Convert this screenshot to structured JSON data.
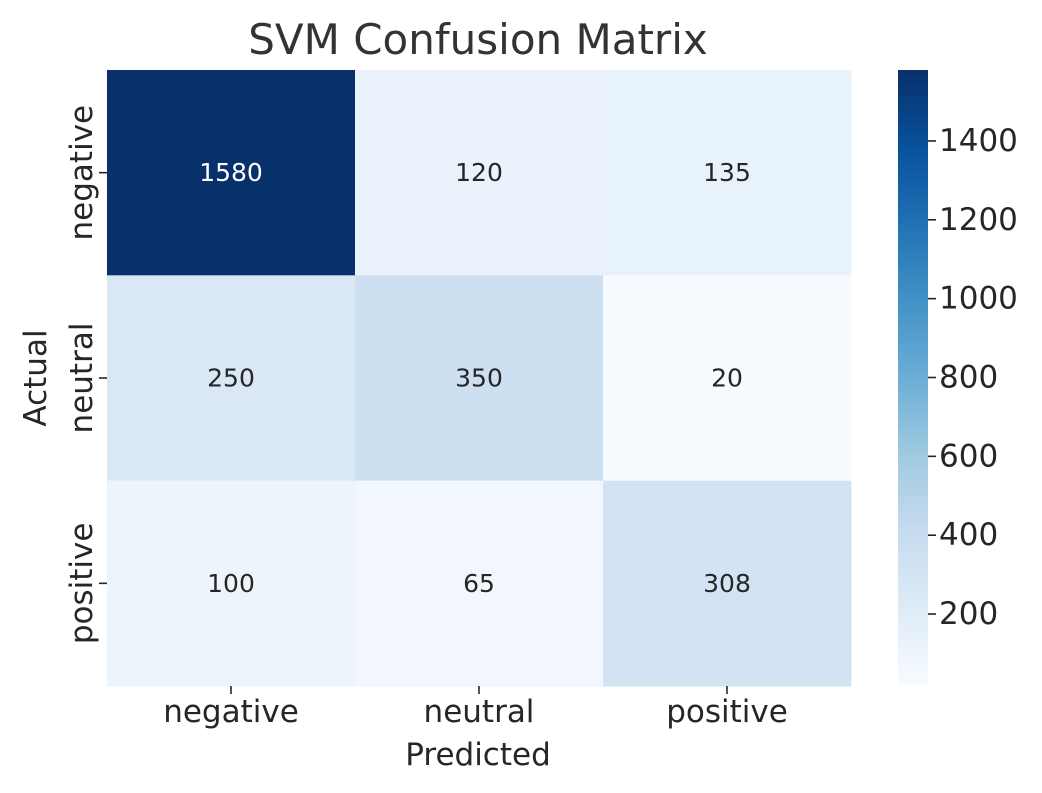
{
  "chart_data": {
    "type": "heatmap",
    "title": "SVM Confusion Matrix",
    "xlabel": "Predicted",
    "ylabel": "Actual",
    "x_categories": [
      "negative",
      "neutral",
      "positive"
    ],
    "y_categories": [
      "negative",
      "neutral",
      "positive"
    ],
    "values": [
      [
        1580,
        120,
        135
      ],
      [
        250,
        350,
        20
      ],
      [
        100,
        65,
        308
      ]
    ],
    "colormap": "Blues",
    "color_range": [
      20,
      1580
    ],
    "colorbar_ticks": [
      200,
      400,
      600,
      800,
      1000,
      1200,
      1400
    ],
    "grid": false,
    "annotations": true
  }
}
